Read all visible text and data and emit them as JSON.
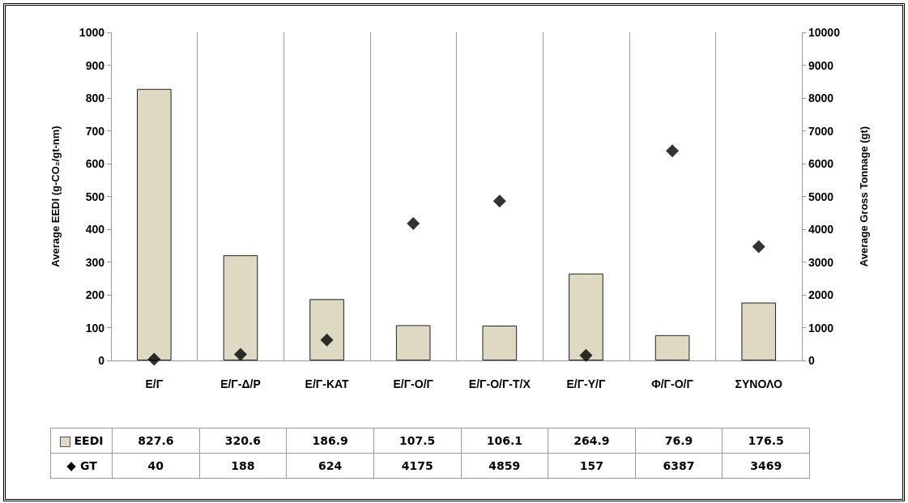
{
  "chart_data": {
    "type": "bar",
    "categories": [
      "Ε/Γ",
      "Ε/Γ-Δ/Ρ",
      "Ε/Γ-ΚΑΤ",
      "Ε/Γ-Ο/Γ",
      "Ε/Γ-Ο/Γ-Τ/Χ",
      "Ε/Γ-Υ/Γ",
      "Φ/Γ-Ο/Γ",
      "ΣΥΝΟΛΟ"
    ],
    "series": [
      {
        "name": "EEDI",
        "color": "#ddd9c3",
        "values": [
          827.6,
          320.6,
          186.9,
          107.5,
          106.1,
          264.9,
          76.9,
          176.5
        ]
      },
      {
        "name": "GT",
        "type": "scatter",
        "axis": "y2",
        "marker": "diamond",
        "color": "#000000",
        "values": [
          40,
          188,
          624,
          4175,
          4859,
          157,
          6387,
          3469
        ]
      }
    ],
    "ylabel": "Average EEDI (g-CO₂/gt-nm)",
    "y2label": "Average Gross Tonnage (gt)",
    "ylim": [
      0,
      1000
    ],
    "yticks": [
      0,
      100,
      200,
      300,
      400,
      500,
      600,
      700,
      800,
      900,
      1000
    ],
    "y2lim": [
      0,
      10000
    ],
    "y2ticks": [
      0,
      1000,
      2000,
      3000,
      4000,
      5000,
      6000,
      7000,
      8000,
      9000,
      10000
    ],
    "grid": "x",
    "legend": "bottom",
    "data_labels": true
  }
}
